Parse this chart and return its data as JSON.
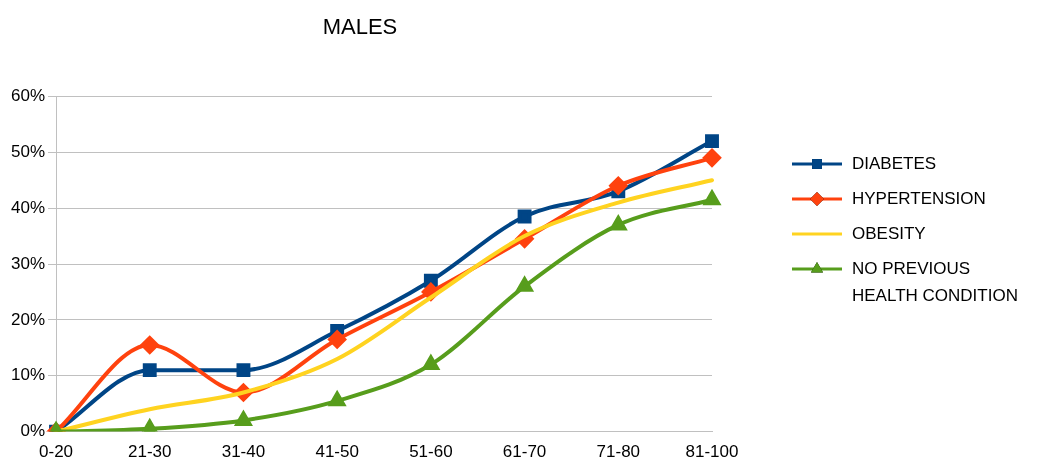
{
  "chart_data": {
    "type": "line",
    "title": "MALES",
    "categories": [
      "0-20",
      "21-30",
      "31-40",
      "41-50",
      "51-60",
      "61-70",
      "71-80",
      "81-100"
    ],
    "series": [
      {
        "name": "DIABETES",
        "color": "#004586",
        "marker": "square",
        "values": [
          0,
          11,
          11,
          18,
          27,
          38.5,
          43,
          52
        ]
      },
      {
        "name": "HYPERTENSION",
        "color": "#ff420e",
        "marker": "diamond",
        "values": [
          0,
          15.5,
          7,
          16.5,
          25,
          34.5,
          44,
          49
        ]
      },
      {
        "name": "OBESITY",
        "color": "#ffd320",
        "marker": "none",
        "values": [
          0,
          4,
          7,
          13,
          24,
          35,
          41,
          45
        ]
      },
      {
        "name": "NO PREVIOUS HEALTH CONDITION",
        "color": "#579d1c",
        "marker": "triangle",
        "values": [
          0,
          0.5,
          2,
          5.5,
          12,
          26,
          37,
          41.5
        ]
      }
    ],
    "ylim": [
      0,
      60
    ],
    "yticks": [
      {
        "value": 0,
        "label": "0%"
      },
      {
        "value": 10,
        "label": "10%"
      },
      {
        "value": 20,
        "label": "20%"
      },
      {
        "value": 30,
        "label": "30%"
      },
      {
        "value": 40,
        "label": "40%"
      },
      {
        "value": 50,
        "label": "50%"
      },
      {
        "value": 60,
        "label": "60%"
      }
    ],
    "grid": "y",
    "legend": "right"
  }
}
